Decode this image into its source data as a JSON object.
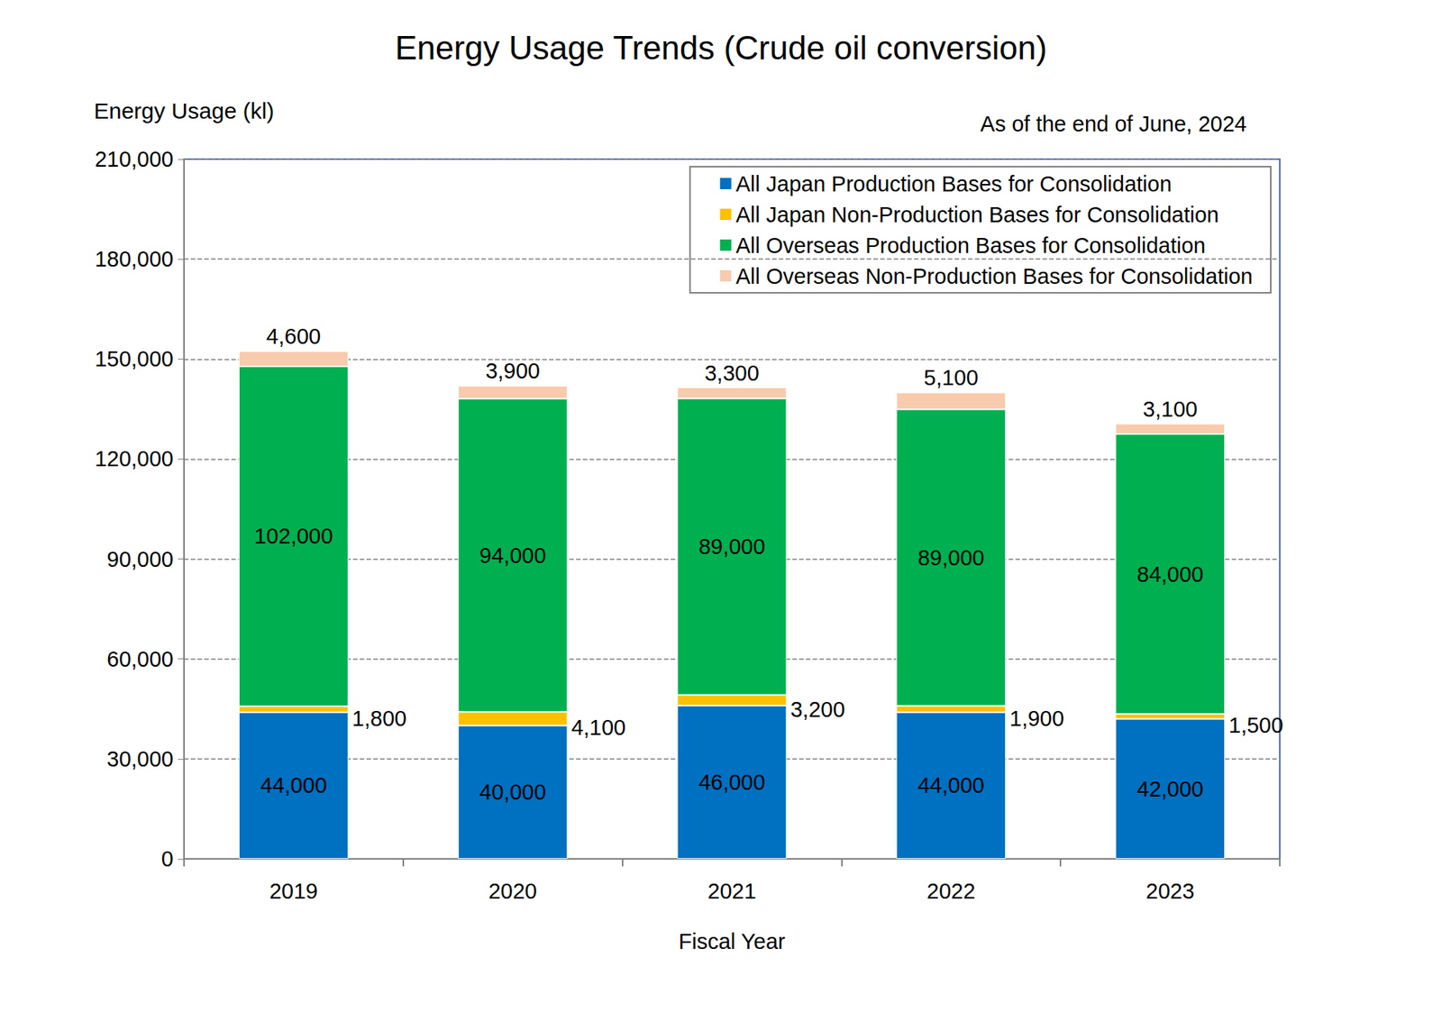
{
  "chart_data": {
    "type": "bar",
    "title": "Energy Usage Trends (Crude oil conversion)",
    "annotation": "As of the end of June, 2024",
    "x_label": "Fiscal Year",
    "y_label": "Energy Usage (kl)",
    "categories": [
      "2019",
      "2020",
      "2021",
      "2022",
      "2023"
    ],
    "series": [
      {
        "name": "All Japan Production Bases for Consolidation",
        "color": "#0070c0",
        "values": [
          44000,
          40000,
          46000,
          44000,
          42000
        ],
        "value_labels": [
          "44,000",
          "40,000",
          "46,000",
          "44,000",
          "42,000"
        ]
      },
      {
        "name": "All Japan Non-Production Bases for Consolidation",
        "color": "#ffc000",
        "values": [
          1800,
          4100,
          3200,
          1900,
          1500
        ],
        "value_labels": [
          "1,800",
          "4,100",
          "3,200",
          "1,900",
          "1,500"
        ]
      },
      {
        "name": "All Overseas Production Bases for Consolidation",
        "color": "#00b050",
        "values": [
          102000,
          94000,
          89000,
          89000,
          84000
        ],
        "value_labels": [
          "102,000",
          "94,000",
          "89,000",
          "89,000",
          "84,000"
        ]
      },
      {
        "name": "All Overseas Non-Production Bases for Consolidation",
        "color": "#f8cbad",
        "values": [
          4600,
          3900,
          3300,
          5100,
          3100
        ],
        "value_labels": [
          "4,600",
          "3,900",
          "3,300",
          "5,100",
          "3,100"
        ]
      }
    ],
    "ylim": [
      0,
      210000
    ],
    "yticks": [
      0,
      {
        "value": 30000,
        "label": "30,000"
      },
      {
        "value": 60000,
        "label": "60,000"
      },
      {
        "value": 90000,
        "label": "90,000"
      },
      {
        "value": 120000,
        "label": "120,000"
      },
      {
        "value": 150000,
        "label": "150,000"
      },
      {
        "value": 180000,
        "label": "180,000"
      },
      {
        "value": 210000,
        "label": "210,000"
      }
    ],
    "grid": true,
    "stacked": true,
    "data_labels": true,
    "legend": "upper right"
  }
}
